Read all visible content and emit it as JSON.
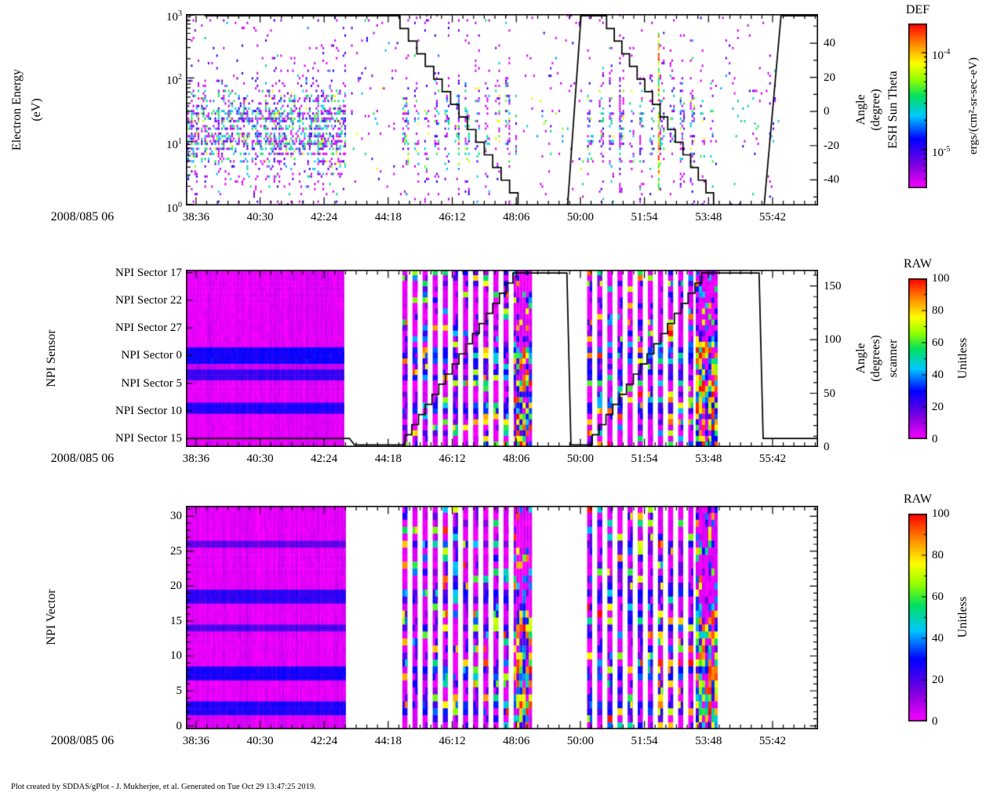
{
  "figure": {
    "background": "#FFFFFF",
    "footer": "Plot created by SDDAS/gPlot - J. Mukherjee, et al.  Generated on Tue Oct 29 13:47:25 2019.",
    "time_axis": {
      "date_label": "2008/085 06",
      "tick_labels": [
        "38:36",
        "40:30",
        "42:24",
        "44:18",
        "46:12",
        "48:06",
        "50:00",
        "51:54",
        "53:48",
        "55:42"
      ],
      "tick_minutes": [
        38.6,
        40.5,
        42.4,
        44.3,
        46.2,
        48.1,
        50,
        51.9,
        53.8,
        55.7
      ],
      "range_minutes": [
        38.3,
        57.05
      ]
    },
    "colormap": [
      {
        "v": 0,
        "c": "#FF00FF"
      },
      {
        "v": 0.14,
        "c": "#8000E0"
      },
      {
        "v": 0.3,
        "c": "#0000FF"
      },
      {
        "v": 0.44,
        "c": "#00C8FF"
      },
      {
        "v": 0.56,
        "c": "#00E060"
      },
      {
        "v": 0.66,
        "c": "#90FF00"
      },
      {
        "v": 0.76,
        "c": "#FFFF00"
      },
      {
        "v": 0.87,
        "c": "#FF9000"
      },
      {
        "v": 1,
        "c": "#FF0000"
      }
    ]
  },
  "chart_data": [
    {
      "type": "heatmap",
      "name": "electron-energy-spectrogram",
      "ylabel_line1": "Electron Energy",
      "ylabel_line2": "(eV)",
      "yscale": "log",
      "ylim": [
        1,
        1000
      ],
      "ytick_exponents": [
        3,
        2,
        1,
        0
      ],
      "right_axis": {
        "title_outer": "ESH Sun Theta",
        "title_inner1": "Angle",
        "title_inner2": "(degree)",
        "ticks": [
          40,
          20,
          0,
          -20,
          -40
        ],
        "ylim": [
          -55,
          57
        ],
        "minor_step": 10
      },
      "colorbar": {
        "title": "DEF",
        "unit": "ergs/(cm²-sr-sec-eV)",
        "scale": "log",
        "tick_exponents": [
          -4,
          -5
        ],
        "range_exponents": [
          -5.4,
          -3.7
        ]
      },
      "overlay_line": {
        "name": "sun-theta-angle",
        "color": "#000000",
        "axis": "right",
        "segments": [
          {
            "type": "flat",
            "t0": 38.85,
            "t1": 44.4,
            "v": 56
          },
          {
            "type": "steps",
            "t0": 44.4,
            "t1": 48.15,
            "v0": 56,
            "v1": -55,
            "n": 15
          },
          {
            "type": "flat",
            "t0": 48.15,
            "t1": 49.62,
            "v": -55
          },
          {
            "type": "ramp",
            "t0": 49.62,
            "t1": 50.02,
            "v0": -55,
            "v1": 56
          },
          {
            "type": "flat",
            "t0": 50.02,
            "t1": 50.55,
            "v": 56
          },
          {
            "type": "steps",
            "t0": 50.55,
            "t1": 53.95,
            "v0": 56,
            "v1": -55,
            "n": 15
          },
          {
            "type": "flat",
            "t0": 53.95,
            "t1": 55.45,
            "v": -55
          },
          {
            "type": "ramp",
            "t0": 55.45,
            "t1": 55.95,
            "v0": -55,
            "v1": 56
          },
          {
            "type": "flat",
            "t0": 55.95,
            "t1": 57.05,
            "v": 56
          }
        ]
      },
      "data_segments": [
        {
          "kind": "scatter-dense",
          "t0": 38.3,
          "t1": 43.0
        },
        {
          "kind": "scatter-sparse",
          "t0": 43.2,
          "t1": 44.65
        },
        {
          "kind": "scatter-stripes",
          "t0": 44.72,
          "t1": 48.1,
          "period": 0.3,
          "duty": 0.5
        },
        {
          "kind": "scatter-sparse",
          "t0": 48.3,
          "t1": 50.05
        },
        {
          "kind": "scatter-stripes",
          "t0": 50.2,
          "t1": 53.9,
          "period": 0.3,
          "duty": 0.5
        },
        {
          "kind": "scatter-sparse",
          "t0": 54.0,
          "t1": 55.85
        },
        {
          "kind": "hot-column",
          "t0": 52.3,
          "t1": 52.42
        }
      ]
    },
    {
      "type": "heatmap",
      "name": "npi-sensor",
      "title": "NPI Sensor",
      "row_labels": [
        "NPI Sector 17",
        "NPI Sector 22",
        "NPI Sector 27",
        "NPI Sector 0",
        "NPI Sector 5",
        "NPI Sector 10",
        "NPI Sector 15"
      ],
      "row_label_indices": [
        0,
        5,
        10,
        15,
        20,
        25,
        30
      ],
      "n_rows": 32,
      "row_base_values": [
        3,
        3,
        3,
        3,
        3,
        3,
        3,
        3,
        3,
        3,
        3,
        3,
        3,
        3,
        28,
        28,
        28,
        6,
        23,
        23,
        3,
        3,
        3,
        3,
        26,
        26,
        3,
        3,
        3,
        3,
        3,
        3
      ],
      "right_axis": {
        "title_outer": "scanner",
        "title_inner1": "Angle",
        "title_inner2": "(degrees)",
        "ticks": [
          150,
          100,
          50,
          0
        ],
        "ylim": [
          0,
          165
        ],
        "minor_step": 10
      },
      "colorbar": {
        "title": "RAW",
        "unit": "Unitless",
        "scale": "linear",
        "ticks": [
          100,
          80,
          60,
          40,
          20,
          0
        ],
        "range": [
          0,
          100
        ]
      },
      "overlay_line": {
        "name": "scanner-angle",
        "color": "#000000",
        "axis": "right",
        "segments": [
          {
            "type": "flat",
            "t0": 38.3,
            "t1": 43.15,
            "v": 8
          },
          {
            "type": "ramp",
            "t0": 43.15,
            "t1": 43.3,
            "v0": 8,
            "v1": 2
          },
          {
            "type": "flat",
            "t0": 43.3,
            "t1": 44.6,
            "v": 2
          },
          {
            "type": "steps",
            "t0": 44.6,
            "t1": 48.0,
            "v0": 2,
            "v1": 162,
            "n": 17
          },
          {
            "type": "flat",
            "t0": 48.0,
            "t1": 49.6,
            "v": 162
          },
          {
            "type": "ramp",
            "t0": 49.6,
            "t1": 49.72,
            "v0": 162,
            "v1": 2
          },
          {
            "type": "flat",
            "t0": 49.72,
            "t1": 50.15,
            "v": 2
          },
          {
            "type": "steps",
            "t0": 50.15,
            "t1": 53.6,
            "v0": 2,
            "v1": 162,
            "n": 17
          },
          {
            "type": "flat",
            "t0": 53.6,
            "t1": 55.3,
            "v": 162
          },
          {
            "type": "ramp",
            "t0": 55.3,
            "t1": 55.42,
            "v0": 162,
            "v1": 8
          },
          {
            "type": "flat",
            "t0": 55.42,
            "t1": 57.05,
            "v": 8
          }
        ]
      },
      "data_segments": [
        {
          "kind": "block",
          "t0": 38.3,
          "t1": 43.0
        },
        {
          "kind": "stripes",
          "t0": 44.72,
          "t1": 48.1,
          "period": 0.3,
          "duty": 0.5
        },
        {
          "kind": "hotblock",
          "t0": 48.1,
          "t1": 48.48,
          "hot_from_row": 14
        },
        {
          "kind": "stripes",
          "t0": 50.2,
          "t1": 53.42,
          "period": 0.3,
          "duty": 0.5
        },
        {
          "kind": "hotblock",
          "t0": 53.42,
          "t1": 54.02,
          "hot_from_row": 12
        }
      ]
    },
    {
      "type": "heatmap",
      "name": "npi-vector",
      "title": "NPI Vector",
      "yticks": [
        30,
        25,
        20,
        15,
        10,
        5,
        0
      ],
      "ylim": [
        0,
        31
      ],
      "n_rows": 32,
      "row_base_values": [
        3,
        3,
        3,
        3,
        3,
        18,
        3,
        3,
        3,
        3,
        3,
        3,
        24,
        24,
        3,
        3,
        3,
        20,
        3,
        3,
        3,
        3,
        3,
        27,
        27,
        3,
        3,
        3,
        26,
        26,
        4,
        4
      ],
      "colorbar": {
        "title": "RAW",
        "unit": "Unitless",
        "scale": "linear",
        "ticks": [
          100,
          80,
          60,
          40,
          20,
          0
        ],
        "range": [
          0,
          100
        ]
      },
      "data_segments": [
        {
          "kind": "block",
          "t0": 38.3,
          "t1": 43.05
        },
        {
          "kind": "stripes",
          "t0": 44.72,
          "t1": 48.1,
          "period": 0.3,
          "duty": 0.5
        },
        {
          "kind": "hotblock",
          "t0": 48.1,
          "t1": 48.48,
          "hot_from_row": 15
        },
        {
          "kind": "stripes",
          "t0": 50.2,
          "t1": 53.42,
          "period": 0.3,
          "duty": 0.5
        },
        {
          "kind": "hotblock",
          "t0": 53.42,
          "t1": 54.05,
          "hot_from_row": 15
        }
      ]
    }
  ]
}
